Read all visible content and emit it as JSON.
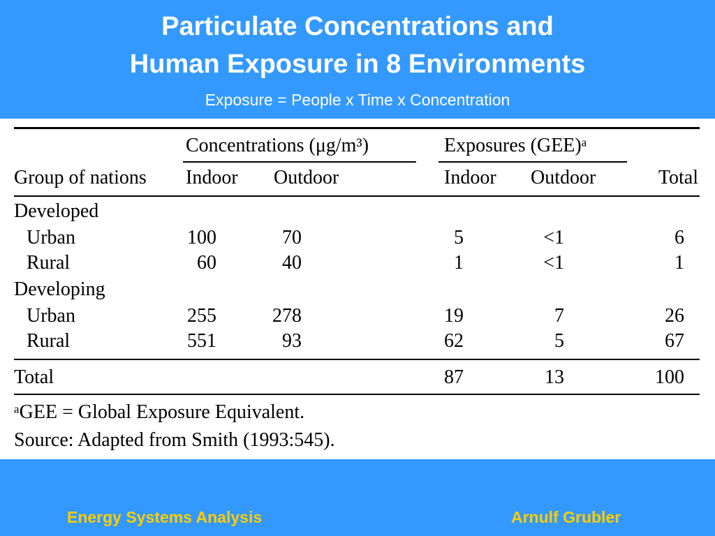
{
  "header": {
    "title_line1": "Particulate Concentrations and",
    "title_line2": "Human Exposure in 8 Environments",
    "subtitle": "Exposure = People x Time x Concentration"
  },
  "table": {
    "group_conc": "Concentrations (μg/m³)",
    "group_exp": "Exposures (GEE)ᵃ",
    "col_group": "Group of nations",
    "col_conc_indoor": "Indoor",
    "col_conc_outdoor": "Outdoor",
    "col_exp_indoor": "Indoor",
    "col_exp_outdoor": "Outdoor",
    "col_total": "Total",
    "developed": "Developed",
    "developing": "Developing",
    "rows": [
      {
        "label": "Urban",
        "conc_indoor": "100",
        "conc_outdoor": "70",
        "exp_indoor": "5",
        "exp_outdoor": "<1",
        "total": "6"
      },
      {
        "label": "Rural",
        "conc_indoor": "60",
        "conc_outdoor": "40",
        "exp_indoor": "1",
        "exp_outdoor": "<1",
        "total": "1"
      },
      {
        "label": "Urban",
        "conc_indoor": "255",
        "conc_outdoor": "278",
        "exp_indoor": "19",
        "exp_outdoor": "7",
        "total": "26"
      },
      {
        "label": "Rural",
        "conc_indoor": "551",
        "conc_outdoor": "93",
        "exp_indoor": "62",
        "exp_outdoor": "5",
        "total": "67"
      }
    ],
    "total_row": {
      "label": "Total",
      "exp_indoor": "87",
      "exp_outdoor": "13",
      "total": "100"
    },
    "footnote": "ᵃGEE = Global Exposure Equivalent.",
    "source": "Source: Adapted from Smith (1993:545)."
  },
  "footer": {
    "left": "Energy Systems Analysis",
    "right": "Arnulf Grubler"
  }
}
